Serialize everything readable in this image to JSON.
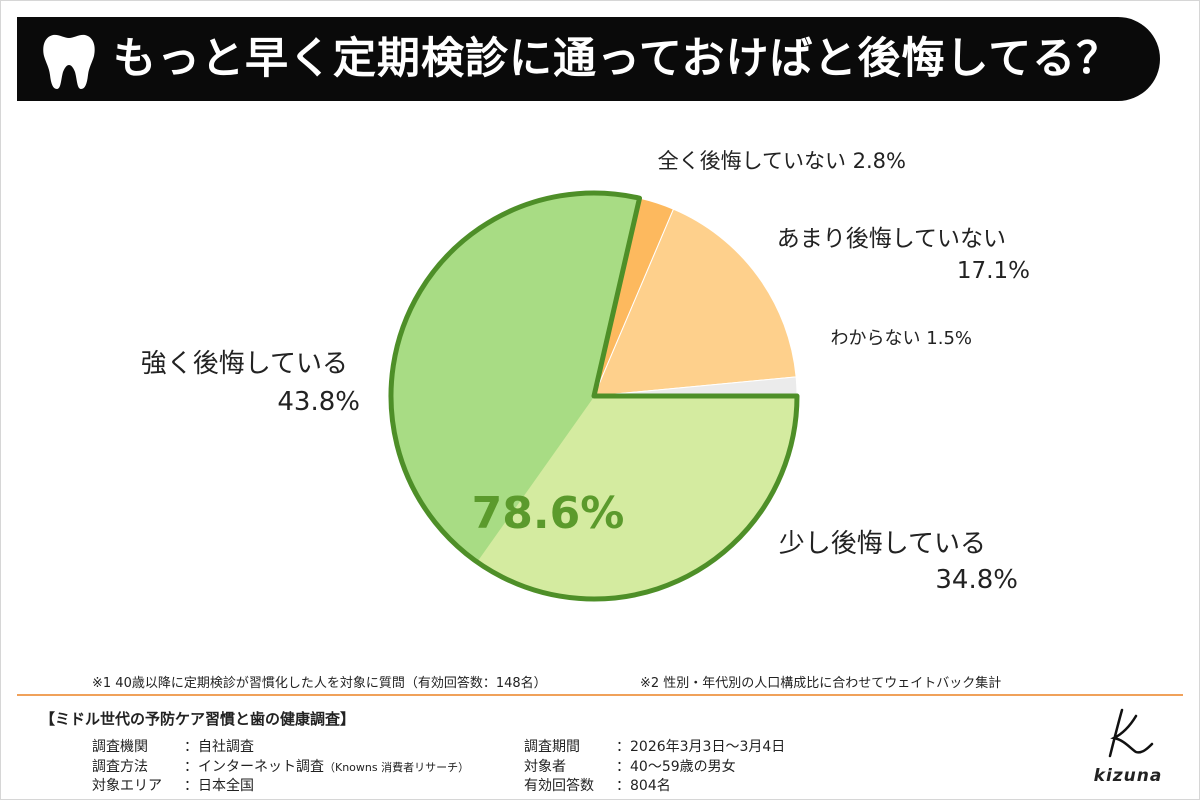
{
  "title": "もっと早く定期検診に通っておけばと後悔してる？",
  "chart_data": {
    "type": "pie",
    "slices": [
      {
        "label": "少し後悔している",
        "value": 34.8,
        "display": "34.8%",
        "color": "#d4eba0"
      },
      {
        "label": "強く後悔している",
        "value": 43.8,
        "display": "43.8%",
        "color": "#a8dc84"
      },
      {
        "label": "全く後悔していない",
        "value": 2.8,
        "display": "2.8%",
        "color": "#fdb95e"
      },
      {
        "label": "あまり後悔していない",
        "value": 17.1,
        "display": "17.1%",
        "color": "#fed08c"
      },
      {
        "label": "わからない",
        "value": 1.5,
        "display": "1.5%",
        "color": "#ebebeb"
      }
    ],
    "group_total": {
      "value": 78.6,
      "display": "78.6%",
      "color": "#5b9a2c"
    },
    "group_outline_color": "#4e8f28"
  },
  "notes": {
    "note1": "※1 40歳以降に定期検診が習慣化した人を対象に質問（有効回答数：148名）",
    "note2": "※2 性別・年代別の人口構成比に合わせてウェイトバック集計"
  },
  "survey": {
    "heading": "【ミドル世代の予防ケア習慣と歯の健康調査】",
    "left": [
      {
        "key": "調査機関",
        "value": "：自社調査",
        "small": ""
      },
      {
        "key": "調査方法",
        "value": "：インターネット調査",
        "small": "（Knowns 消費者リサーチ）"
      },
      {
        "key": "対象エリア",
        "value": "：日本全国",
        "small": ""
      }
    ],
    "right": [
      {
        "key": "調査期間",
        "value": "：2026年3月3日〜3月4日"
      },
      {
        "key": "対象者",
        "value": "：40〜59歳の男女"
      },
      {
        "key": "有効回答数",
        "value": "：804名"
      }
    ]
  },
  "logo": {
    "text": "kizuna"
  },
  "colors": {
    "banner": "#0a0a0a",
    "divider": "#f0a15a"
  }
}
